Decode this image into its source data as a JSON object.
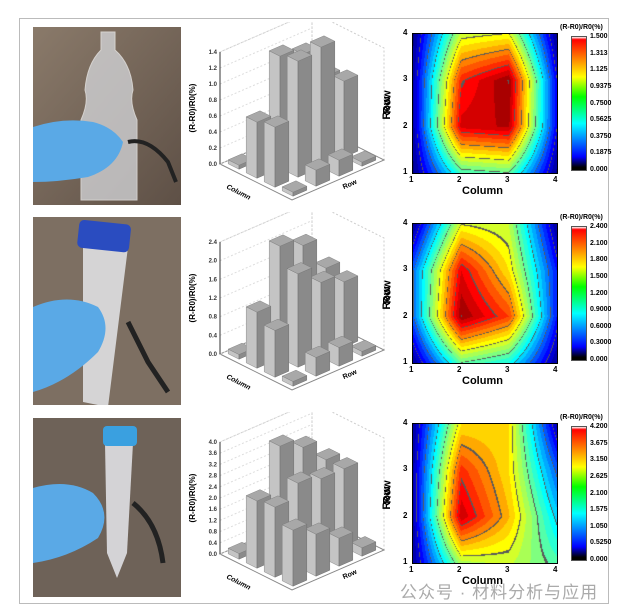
{
  "chart_data": [
    {
      "type": "bar3d",
      "zlabel": "(R-R0)/R0(%)",
      "xlabel": "Column",
      "ylabel": "Row",
      "zlim": [
        0,
        1.4
      ],
      "zticks": [
        "0.0",
        "0.2",
        "0.4",
        "0.6",
        "0.8",
        "1.0",
        "1.2",
        "1.4"
      ],
      "grid": [
        [
          0.05,
          0.7,
          0.75,
          0.05
        ],
        [
          0.1,
          1.4,
          1.45,
          0.2
        ],
        [
          0.1,
          1.3,
          1.5,
          0.2
        ],
        [
          0.05,
          0.9,
          0.95,
          0.05
        ]
      ]
    },
    {
      "type": "heatmap",
      "title": "(R-R0)/R0(%)",
      "xlabel": "Column",
      "ylabel": "Row",
      "xticks": [
        "1",
        "2",
        "3",
        "4"
      ],
      "yticks": [
        "1",
        "2",
        "3",
        "4"
      ],
      "zlim": [
        0,
        1.5
      ],
      "colorbar_ticks": [
        "1.500",
        "1.313",
        "1.125",
        "0.9375",
        "0.7500",
        "0.5625",
        "0.3750",
        "0.1875",
        "0.000"
      ]
    },
    {
      "type": "bar3d",
      "zlabel": "(R-R0)/R0(%)",
      "xlabel": "Column",
      "ylabel": "Row",
      "zlim": [
        0,
        2.4
      ],
      "zticks": [
        "0.0",
        "0.4",
        "0.8",
        "1.2",
        "1.6",
        "2.0",
        "2.4"
      ],
      "grid": [
        [
          0.1,
          1.2,
          1.0,
          0.1
        ],
        [
          0.6,
          2.4,
          2.0,
          0.4
        ],
        [
          0.6,
          2.2,
          1.6,
          0.4
        ],
        [
          0.1,
          1.5,
          1.4,
          0.1
        ]
      ]
    },
    {
      "type": "heatmap",
      "title": "(R-R0)/R0(%)",
      "xlabel": "Column",
      "ylabel": "Row",
      "xticks": [
        "1",
        "2",
        "3",
        "4"
      ],
      "yticks": [
        "1",
        "2",
        "3",
        "4"
      ],
      "zlim": [
        0,
        2.4
      ],
      "colorbar_ticks": [
        "2.400",
        "2.100",
        "1.800",
        "1.500",
        "1.200",
        "0.9000",
        "0.6000",
        "0.3000",
        "0.000"
      ]
    },
    {
      "type": "bar3d",
      "zlabel": "(R-R0)/R0(%)",
      "xlabel": "Column",
      "ylabel": "Row",
      "zlim": [
        0,
        4.0
      ],
      "zticks": [
        "0.0",
        "0.4",
        "0.8",
        "1.2",
        "1.6",
        "2.0",
        "2.4",
        "2.8",
        "3.2",
        "3.6",
        "4.0"
      ],
      "grid": [
        [
          0.2,
          2.4,
          2.5,
          2.0
        ],
        [
          0.3,
          4.0,
          3.0,
          1.5
        ],
        [
          0.3,
          3.6,
          2.8,
          1.0
        ],
        [
          0.2,
          2.8,
          2.8,
          0.3
        ]
      ]
    },
    {
      "type": "heatmap",
      "title": "(R-R0)/R0(%)",
      "xlabel": "Column",
      "ylabel": "Row",
      "xticks": [
        "1",
        "2",
        "3",
        "4"
      ],
      "yticks": [
        "1",
        "2",
        "3",
        "4"
      ],
      "zlim": [
        0,
        4.2
      ],
      "colorbar_ticks": [
        "4.200",
        "3.675",
        "3.150",
        "2.625",
        "2.100",
        "1.575",
        "1.050",
        "0.5250",
        "0.000"
      ]
    }
  ],
  "photos": [
    "bottle",
    "large-centrifuge-tube",
    "small-centrifuge-tube"
  ],
  "colors": {
    "glove": "#5aa9e6",
    "background": "#7a6a5c",
    "cap": "#2a4cc0",
    "cap_light": "#3aa0e0"
  },
  "watermark": "公众号 · 材料分析与应用"
}
